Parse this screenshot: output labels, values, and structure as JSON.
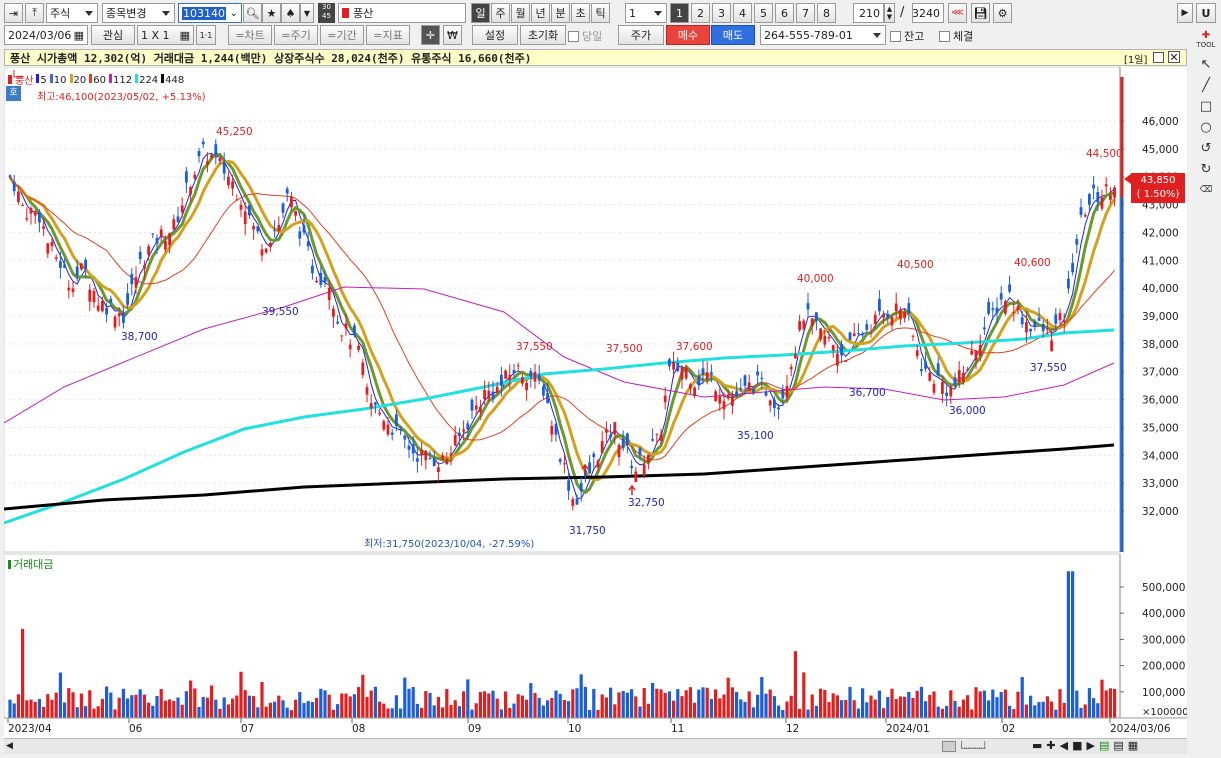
{
  "toolbar": {
    "pin_icon": "pin-icon",
    "market": "주식",
    "change_label": "종목변경",
    "code": "103140",
    "badge30": "30",
    "badge45": "45",
    "stock_name": "풍산",
    "periods": [
      "일",
      "주",
      "월",
      "년",
      "분",
      "초",
      "틱"
    ],
    "period_value": "1",
    "nums": [
      "1",
      "2",
      "3",
      "4",
      "5",
      "6",
      "7",
      "8"
    ],
    "count": "210",
    "total": "3240",
    "right_u": "U",
    "right_b": "▶"
  },
  "toolbar2": {
    "date": "2024/03/06",
    "interest": "관심",
    "layout": "1 X 1",
    "one": "1·1",
    "chart": "=차트",
    "cycle": "=주기",
    "period": "=기간",
    "indicator": "=지표",
    "won": "₩",
    "setting": "설정",
    "reset": "초기화",
    "today": "당일",
    "price": "주가",
    "buy": "매수",
    "sell": "매도",
    "account": "264-555-789-01",
    "balance": "잔고",
    "fill": "체결"
  },
  "info": {
    "text": "풍산  시가총액 12,302(억)  거래대금 1,244(백만)  상장주식수 28,024(천주)  유통주식 16,660(천주)",
    "period_tag": "[1일]"
  },
  "legend": {
    "name": "풍산",
    "ma": [
      {
        "label": "5",
        "color": "#2222dd"
      },
      {
        "label": "10",
        "color": "#4466ee"
      },
      {
        "label": "20",
        "color": "#d4a020"
      },
      {
        "label": "60",
        "color": "#e04020"
      },
      {
        "label": "112",
        "color": "#c020c0"
      },
      {
        "label": "224",
        "color": "#20e0e0"
      },
      {
        "label": "448",
        "color": "#000000"
      }
    ],
    "high": "최고:46,100(2023/05/02, +5.13%)",
    "low": "최저:31,750(2023/10/04, -27.59%)"
  },
  "price_axis": [
    "46,000",
    "45,000",
    "44,000",
    "43,000",
    "42,000",
    "41,000",
    "40,000",
    "39,000",
    "38,000",
    "37,000",
    "36,000",
    "35,000",
    "34,000",
    "33,000",
    "32,000"
  ],
  "current_price": {
    "price": "43,850",
    "change": "( 1.50%)"
  },
  "annotations": [
    {
      "text": "45,250",
      "color": "#dd2222",
      "px": "a1"
    },
    {
      "text": "38,700",
      "color": "#2222bb",
      "px": "a2"
    },
    {
      "text": "39,550",
      "color": "#2222bb",
      "px": "a3"
    },
    {
      "text": "37,550",
      "color": "#dd2222",
      "px": "a4"
    },
    {
      "text": "37,500",
      "color": "#dd2222",
      "px": "a5"
    },
    {
      "text": "37,600",
      "color": "#dd2222",
      "px": "a6"
    },
    {
      "text": "31,750",
      "color": "#2222bb",
      "px": "a7"
    },
    {
      "text": "32,750",
      "color": "#2222bb",
      "px": "a8"
    },
    {
      "text": "35,100",
      "color": "#2222bb",
      "px": "a9"
    },
    {
      "text": "40,000",
      "color": "#dd2222",
      "px": "a10"
    },
    {
      "text": "36,700",
      "color": "#2222bb",
      "px": "a11"
    },
    {
      "text": "40,500",
      "color": "#dd2222",
      "px": "a12"
    },
    {
      "text": "36,000",
      "color": "#2222bb",
      "px": "a13"
    },
    {
      "text": "40,600",
      "color": "#dd2222",
      "px": "a14"
    },
    {
      "text": "37,550",
      "color": "#2222bb",
      "px": "a15"
    },
    {
      "text": "44,500",
      "color": "#dd2222",
      "px": "a16"
    }
  ],
  "volume": {
    "title": "거래대금",
    "axis": [
      "500,000",
      "400,000",
      "300,000",
      "200,000",
      "100,000"
    ],
    "unit": "×100000"
  },
  "xaxis": [
    "2023/04",
    "06",
    "07",
    "08",
    "09",
    "10",
    "11",
    "12",
    "2024/01",
    "02",
    "2024/03/06"
  ],
  "colors": {
    "up": "#e02020",
    "down": "#1a5fd8",
    "panel": "#ffffff",
    "accent": "#fdfdc8"
  }
}
